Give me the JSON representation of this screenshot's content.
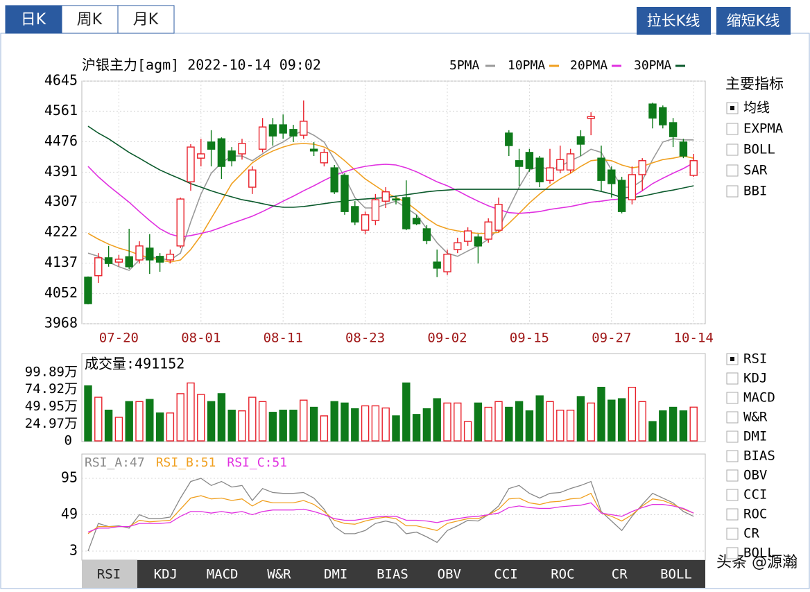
{
  "tabs": [
    "日K",
    "周K",
    "月K"
  ],
  "buttons": [
    "拉长K线",
    "缩短K线"
  ],
  "main_indicators": {
    "title": "主要指标",
    "options": [
      "均线",
      "EXPMA",
      "BOLL",
      "SAR",
      "BBI"
    ],
    "selected_index": 0
  },
  "sub_indicators": {
    "options": [
      "RSI",
      "KDJ",
      "MACD",
      "W&R",
      "DMI",
      "BIAS",
      "OBV",
      "CCI",
      "ROC",
      "CR",
      "BOLL"
    ],
    "selected_index": 0
  },
  "bottom_tabs": {
    "tabs": [
      "RSI",
      "KDJ",
      "MACD",
      "W&R",
      "DMI",
      "BIAS",
      "OBV",
      "CCI",
      "ROC",
      "CR",
      "BOLL"
    ],
    "selected_index": 0
  },
  "watermark": "头条 @源瀚",
  "chart_data": [
    {
      "type": "candlestick",
      "title": "沪银主力[agm] 2022-10-14 09:02",
      "categories": [
        null,
        null,
        null,
        "07-20",
        null,
        null,
        null,
        null,
        null,
        null,
        null,
        "08-01",
        null,
        null,
        null,
        null,
        null,
        null,
        null,
        "08-11",
        null,
        null,
        null,
        null,
        null,
        null,
        null,
        "08-23",
        null,
        null,
        null,
        null,
        null,
        null,
        null,
        "09-02",
        null,
        null,
        null,
        null,
        null,
        null,
        null,
        "09-15",
        null,
        null,
        null,
        null,
        null,
        null,
        null,
        "09-27",
        null,
        null,
        null,
        null,
        null,
        null,
        null,
        "10-14"
      ],
      "open": [
        4098,
        4102,
        4152,
        4140,
        4155,
        4146,
        4179,
        4156,
        4146,
        4185,
        4364,
        4430,
        4475,
        4484,
        4450,
        4442,
        4349,
        4455,
        4523,
        4523,
        4510,
        4494,
        4455,
        4417,
        4403,
        4382,
        4295,
        4229,
        4256,
        4310,
        4316,
        4320,
        4262,
        4233,
        4140,
        4113,
        4175,
        4198,
        4210,
        4204,
        4229,
        4500,
        4423,
        4446,
        4430,
        4368,
        4397,
        4397,
        4490,
        4541,
        4430,
        4397,
        4368,
        4314,
        4384,
        4581,
        4571,
        4529,
        4475,
        4382
      ],
      "high": [
        4100,
        4165,
        4185,
        4160,
        4233,
        4198,
        4218,
        4165,
        4175,
        4320,
        4469,
        4484,
        4508,
        4488,
        4461,
        4484,
        4407,
        4542,
        4542,
        4552,
        4523,
        4591,
        4475,
        4456,
        4411,
        4388,
        4310,
        4281,
        4330,
        4349,
        4326,
        4368,
        4272,
        4243,
        4175,
        4175,
        4208,
        4237,
        4218,
        4262,
        4320,
        4508,
        4456,
        4456,
        4436,
        4456,
        4465,
        4456,
        4508,
        4558,
        4465,
        4407,
        4378,
        4407,
        4430,
        4585,
        4577,
        4542,
        4484,
        4442
      ],
      "low": [
        4022,
        4082,
        4127,
        4128,
        4121,
        4136,
        4107,
        4113,
        4136,
        4179,
        4339,
        4407,
        4407,
        4372,
        4407,
        4426,
        4330,
        4446,
        4465,
        4484,
        4475,
        4484,
        4436,
        4407,
        4330,
        4272,
        4243,
        4218,
        4243,
        4291,
        4301,
        4229,
        4243,
        4190,
        4098,
        4104,
        4165,
        4185,
        4136,
        4194,
        4223,
        4436,
        4353,
        4392,
        4349,
        4359,
        4388,
        4388,
        4436,
        4494,
        4339,
        4320,
        4276,
        4301,
        4339,
        4513,
        4513,
        4461,
        4430,
        4378
      ],
      "close": [
        4024,
        4152,
        4136,
        4148,
        4127,
        4185,
        4146,
        4140,
        4162,
        4316,
        4461,
        4442,
        4455,
        4407,
        4423,
        4471,
        4397,
        4517,
        4492,
        4500,
        4492,
        4533,
        4450,
        4446,
        4336,
        4281,
        4252,
        4272,
        4314,
        4336,
        4314,
        4233,
        4247,
        4200,
        4123,
        4162,
        4194,
        4227,
        4185,
        4252,
        4301,
        4465,
        4407,
        4401,
        4364,
        4403,
        4426,
        4442,
        4469,
        4546,
        4368,
        4359,
        4281,
        4384,
        4423,
        4542,
        4523,
        4490,
        4436,
        4423
      ],
      "up_color": "#e8202a",
      "down_color": "#0e7a1a",
      "series": [
        {
          "name": "5PMA",
          "color": "#9a9a9a",
          "values": [
            4165,
            4156,
            4140,
            4127,
            4117,
            4146,
            4156,
            4150,
            4146,
            4165,
            4252,
            4330,
            4388,
            4417,
            4436,
            4436,
            4423,
            4442,
            4461,
            4475,
            4494,
            4508,
            4494,
            4475,
            4426,
            4378,
            4320,
            4291,
            4291,
            4301,
            4310,
            4291,
            4272,
            4233,
            4194,
            4165,
            4156,
            4171,
            4185,
            4204,
            4233,
            4291,
            4349,
            4397,
            4407,
            4397,
            4407,
            4423,
            4436,
            4455,
            4446,
            4397,
            4349,
            4349,
            4368,
            4426,
            4475,
            4484,
            4481,
            4481
          ]
        },
        {
          "name": "10PMA",
          "color": "#f0a020",
          "values": [
            4220,
            4204,
            4190,
            4179,
            4171,
            4160,
            4152,
            4146,
            4140,
            4146,
            4175,
            4214,
            4262,
            4310,
            4359,
            4388,
            4417,
            4436,
            4450,
            4461,
            4469,
            4471,
            4469,
            4461,
            4446,
            4423,
            4397,
            4372,
            4353,
            4334,
            4320,
            4307,
            4285,
            4262,
            4243,
            4233,
            4227,
            4223,
            4220,
            4220,
            4223,
            4248,
            4276,
            4305,
            4330,
            4353,
            4372,
            4388,
            4407,
            4423,
            4426,
            4423,
            4411,
            4403,
            4407,
            4417,
            4426,
            4430,
            4436,
            4430
          ]
        },
        {
          "name": "20PMA",
          "color": "#e030e0",
          "values": [
            4407,
            4378,
            4353,
            4330,
            4307,
            4281,
            4256,
            4233,
            4218,
            4210,
            4214,
            4220,
            4227,
            4237,
            4248,
            4258,
            4268,
            4281,
            4295,
            4310,
            4324,
            4339,
            4353,
            4368,
            4382,
            4392,
            4401,
            4407,
            4411,
            4413,
            4411,
            4403,
            4392,
            4378,
            4364,
            4353,
            4339,
            4324,
            4310,
            4297,
            4287,
            4278,
            4276,
            4278,
            4281,
            4287,
            4291,
            4295,
            4301,
            4307,
            4310,
            4314,
            4316,
            4322,
            4339,
            4359,
            4374,
            4388,
            4401,
            4417
          ]
        },
        {
          "name": "30PMA",
          "color": "#0b5a2c",
          "values": [
            4519,
            4500,
            4484,
            4465,
            4446,
            4430,
            4413,
            4397,
            4384,
            4372,
            4359,
            4349,
            4339,
            4330,
            4322,
            4314,
            4309,
            4303,
            4297,
            4293,
            4293,
            4295,
            4299,
            4303,
            4307,
            4310,
            4314,
            4316,
            4318,
            4320,
            4324,
            4328,
            4332,
            4336,
            4339,
            4341,
            4343,
            4343,
            4343,
            4343,
            4343,
            4343,
            4343,
            4343,
            4343,
            4343,
            4343,
            4343,
            4343,
            4343,
            4337,
            4330,
            4320,
            4320,
            4324,
            4330,
            4336,
            4341,
            4347,
            4353
          ]
        }
      ],
      "ylim": [
        3968,
        4645
      ],
      "yticks": [
        4645,
        4561,
        4476,
        4391,
        4307,
        4222,
        4137,
        4052,
        3968
      ],
      "grid": true
    },
    {
      "type": "bar",
      "title": "成交量:491152",
      "values": [
        801000,
        635000,
        447000,
        343000,
        572000,
        572000,
        603000,
        406000,
        406000,
        687000,
        843000,
        676000,
        572000,
        687000,
        447000,
        437000,
        635000,
        572000,
        416000,
        447000,
        447000,
        593000,
        489000,
        364000,
        572000,
        551000,
        468000,
        510000,
        510000,
        479000,
        364000,
        843000,
        385000,
        468000,
        614000,
        551000,
        551000,
        281000,
        551000,
        489000,
        572000,
        489000,
        572000,
        437000,
        655000,
        572000,
        447000,
        447000,
        645000,
        551000,
        780000,
        593000,
        614000,
        780000,
        572000,
        281000,
        437000,
        489000,
        437000,
        491152
      ],
      "ylim": [
        0,
        998900
      ],
      "yticks": [
        {
          "value": 998900,
          "label": "99.89万"
        },
        {
          "value": 749200,
          "label": "74.92万"
        },
        {
          "value": 499500,
          "label": "49.95万"
        },
        {
          "value": 249700,
          "label": "24.97万"
        },
        0
      ]
    },
    {
      "type": "line",
      "series": [
        {
          "name": "RSI_A:47",
          "color": "#888888",
          "values": [
            3,
            38,
            34,
            35,
            32,
            49,
            44,
            44,
            46,
            70,
            91,
            95,
            86,
            91,
            84,
            86,
            67,
            82,
            77,
            76,
            76,
            77,
            70,
            56,
            34,
            25,
            25,
            29,
            38,
            41,
            38,
            25,
            27,
            21,
            14,
            29,
            35,
            42,
            41,
            49,
            60,
            82,
            86,
            76,
            70,
            76,
            77,
            82,
            86,
            91,
            53,
            41,
            29,
            47,
            62,
            76,
            70,
            64,
            53,
            47
          ]
        },
        {
          "name": "RSI_B:51",
          "color": "#f0a020",
          "values": [
            25,
            34,
            34,
            34,
            34,
            42,
            40,
            41,
            42,
            56,
            70,
            73,
            69,
            70,
            67,
            69,
            60,
            67,
            64,
            64,
            64,
            67,
            62,
            53,
            42,
            38,
            37,
            41,
            44,
            46,
            44,
            35,
            35,
            32,
            29,
            38,
            41,
            44,
            44,
            49,
            56,
            69,
            70,
            64,
            62,
            65,
            66,
            69,
            70,
            76,
            51,
            47,
            41,
            49,
            60,
            69,
            67,
            62,
            56,
            51
          ]
        },
        {
          "name": "RSI_C:51",
          "color": "#e030e0",
          "values": [
            27,
            32,
            32,
            34,
            34,
            38,
            38,
            38,
            39,
            47,
            53,
            53,
            51,
            53,
            51,
            53,
            49,
            53,
            55,
            55,
            55,
            56,
            53,
            49,
            44,
            42,
            42,
            44,
            46,
            47,
            47,
            42,
            42,
            41,
            39,
            42,
            44,
            46,
            47,
            49,
            51,
            58,
            60,
            58,
            57,
            57,
            59,
            60,
            61,
            64,
            51,
            49,
            47,
            53,
            58,
            62,
            62,
            60,
            57,
            51
          ]
        }
      ],
      "ylim": [
        3,
        95
      ],
      "yticks": [
        95,
        49,
        3
      ]
    }
  ]
}
